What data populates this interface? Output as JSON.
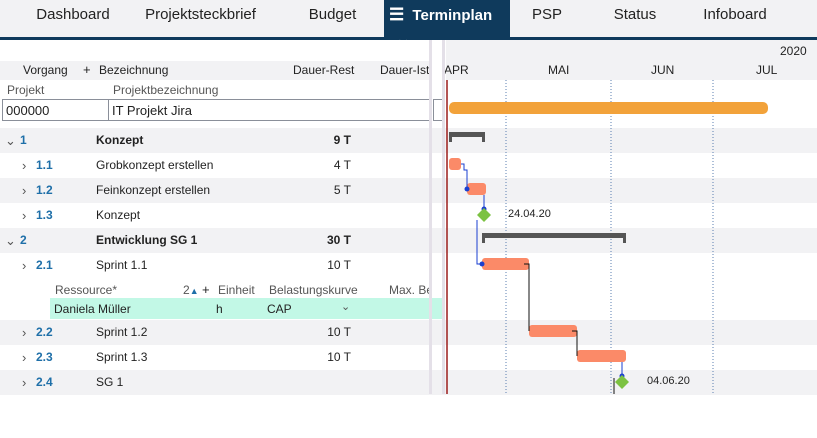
{
  "tabs": [
    {
      "label": "Dashboard"
    },
    {
      "label": "Projektsteckbrief"
    },
    {
      "label": "Budget"
    },
    {
      "label": "Terminplan",
      "active": true
    },
    {
      "label": "PSP"
    },
    {
      "label": "Status"
    },
    {
      "label": "Infoboard"
    }
  ],
  "columns": {
    "vorgang": "Vorgang",
    "add": "+",
    "bezeichnung": "Bezeichnung",
    "dauer_rest": "Dauer-Rest",
    "dauer_ist": "Dauer-Ist"
  },
  "project": {
    "label": "Projekt",
    "name_label": "Projektbezeichnung",
    "id": "000000",
    "name": "IT Projekt Jira"
  },
  "timeline": {
    "year": "2020",
    "months": [
      "APR",
      "MAI",
      "JUN",
      "JUL"
    ]
  },
  "rows": [
    {
      "num": "1",
      "name": "Konzept",
      "dur": "9 T",
      "summary": true
    },
    {
      "num": "1.1",
      "name": "Grobkonzept erstellen",
      "dur": "4 T"
    },
    {
      "num": "1.2",
      "name": "Feinkonzept erstellen",
      "dur": "5 T"
    },
    {
      "num": "1.3",
      "name": "Konzept",
      "dur": ""
    },
    {
      "num": "2",
      "name": "Entwicklung SG 1",
      "dur": "30 T",
      "summary": true
    },
    {
      "num": "2.1",
      "name": "Sprint 1.1",
      "dur": "10 T"
    },
    {
      "num": "2.2",
      "name": "Sprint 1.2",
      "dur": "10 T"
    },
    {
      "num": "2.3",
      "name": "Sprint 1.3",
      "dur": "10 T"
    },
    {
      "num": "2.4",
      "name": "SG 1",
      "dur": ""
    }
  ],
  "resource": {
    "col_resource": "Ressource*",
    "count": "2",
    "add": "+",
    "col_unit": "Einheit",
    "col_curve": "Belastungskurve",
    "col_max": "Max. Be",
    "name": "Daniela Müller",
    "unit": "h",
    "curve": "CAP"
  },
  "milestones": [
    {
      "date": "24.04.20"
    },
    {
      "date": "04.06.20"
    }
  ],
  "colors": {
    "accent": "#0f3a5c",
    "project_bar": "#f2a23a",
    "task_bar": "#fb8a68",
    "summary_bar": "#555555",
    "milestone": "#7cc242",
    "resource_row": "#c2f8e6",
    "today_line": "#9b1c1c"
  }
}
